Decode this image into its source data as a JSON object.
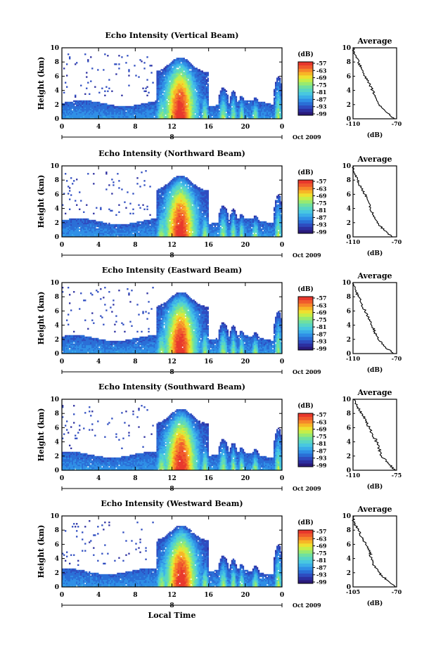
{
  "figure": {
    "xlabel": "Local Time"
  },
  "colorbar": {
    "unit": "(dB)",
    "ticks": [
      "-57",
      "-63",
      "-69",
      "-75",
      "-81",
      "-87",
      "-93",
      "-99"
    ],
    "colors": [
      "#2a1a7a",
      "#2c2fa0",
      "#2e4cc0",
      "#2a6ed6",
      "#2f8fe6",
      "#3aaee8",
      "#48c8e0",
      "#58d6c4",
      "#6fe0a0",
      "#98ea70",
      "#c6ee48",
      "#eee030",
      "#f7b626",
      "#f6862a",
      "#f05a2c",
      "#e8382c"
    ]
  },
  "chart_data": [
    {
      "type": "heatmap",
      "title": "Echo Intensity (Vertical Beam)",
      "ylabel": "Height (km)",
      "xlim": [
        0,
        24
      ],
      "ylim": [
        0,
        10
      ],
      "xticks": [
        "0",
        "4",
        "8",
        "12",
        "16",
        "20",
        "0"
      ],
      "yticks": [
        "0",
        "2",
        "4",
        "6",
        "8",
        "10"
      ],
      "date_marker": "8",
      "date_label": "Oct 2009",
      "avg": {
        "title": "Average",
        "xlabel": "(dB)",
        "xticks": [
          "-110",
          "-70"
        ],
        "xlim": [
          -110,
          -70
        ],
        "ylim": [
          0,
          10
        ],
        "profile": [
          [
            0,
            -72
          ],
          [
            1,
            -80
          ],
          [
            2,
            -86
          ],
          [
            3,
            -89
          ],
          [
            4,
            -92
          ],
          [
            5,
            -95
          ],
          [
            6,
            -99
          ],
          [
            7,
            -102
          ],
          [
            8,
            -105
          ],
          [
            9,
            -108
          ],
          [
            10,
            -110
          ]
        ]
      }
    },
    {
      "type": "heatmap",
      "title": "Echo Intensity (Northward Beam)",
      "ylabel": "Height (km)",
      "xlim": [
        0,
        24
      ],
      "ylim": [
        0,
        10
      ],
      "xticks": [
        "0",
        "4",
        "8",
        "12",
        "16",
        "20",
        "0"
      ],
      "yticks": [
        "0",
        "2",
        "4",
        "6",
        "8",
        "10"
      ],
      "date_marker": "8",
      "date_label": "Oct 2009",
      "avg": {
        "title": "Average",
        "xlabel": "(dB)",
        "xticks": [
          "-110",
          "-70"
        ],
        "xlim": [
          -110,
          -70
        ],
        "ylim": [
          0,
          10
        ],
        "profile": [
          [
            0,
            -74
          ],
          [
            1,
            -82
          ],
          [
            2,
            -88
          ],
          [
            3,
            -91
          ],
          [
            4,
            -94
          ],
          [
            5,
            -96
          ],
          [
            6,
            -99
          ],
          [
            7,
            -103
          ],
          [
            8,
            -106
          ],
          [
            9,
            -109
          ],
          [
            10,
            -110
          ]
        ]
      }
    },
    {
      "type": "heatmap",
      "title": "Echo Intensity (Eastward Beam)",
      "ylabel": "Height (km)",
      "xlim": [
        0,
        24
      ],
      "ylim": [
        0,
        10
      ],
      "xticks": [
        "0",
        "4",
        "8",
        "12",
        "16",
        "20",
        "0"
      ],
      "yticks": [
        "0",
        "2",
        "4",
        "6",
        "8",
        "10"
      ],
      "date_marker": "8",
      "date_label": "Oct 2009",
      "avg": {
        "title": "Average",
        "xlabel": "(dB)",
        "xticks": [
          "-110",
          "-70"
        ],
        "xlim": [
          -110,
          -70
        ],
        "ylim": [
          0,
          10
        ],
        "profile": [
          [
            0,
            -73
          ],
          [
            1,
            -81
          ],
          [
            2,
            -87
          ],
          [
            3,
            -90
          ],
          [
            4,
            -93
          ],
          [
            5,
            -96
          ],
          [
            6,
            -99
          ],
          [
            7,
            -102
          ],
          [
            8,
            -105
          ],
          [
            9,
            -108
          ],
          [
            10,
            -110
          ]
        ]
      }
    },
    {
      "type": "heatmap",
      "title": "Echo Intensity (Southward Beam)",
      "ylabel": "Height (km)",
      "xlim": [
        0,
        24
      ],
      "ylim": [
        0,
        10
      ],
      "xticks": [
        "0",
        "4",
        "8",
        "12",
        "16",
        "20",
        "0"
      ],
      "yticks": [
        "0",
        "2",
        "4",
        "6",
        "8",
        "10"
      ],
      "date_marker": "8",
      "date_label": "Oct 2009",
      "avg": {
        "title": "Average",
        "xlabel": "(dB)",
        "xticks": [
          "-110",
          "-75"
        ],
        "xlim": [
          -110,
          -75
        ],
        "ylim": [
          0,
          10
        ],
        "profile": [
          [
            0,
            -76
          ],
          [
            1,
            -82
          ],
          [
            2,
            -87
          ],
          [
            3,
            -89
          ],
          [
            4,
            -91
          ],
          [
            5,
            -94
          ],
          [
            6,
            -97
          ],
          [
            7,
            -100
          ],
          [
            8,
            -103
          ],
          [
            9,
            -107
          ],
          [
            10,
            -110
          ]
        ]
      }
    },
    {
      "type": "heatmap",
      "title": "Echo Intensity (Westward Beam)",
      "ylabel": "Height (km)",
      "xlim": [
        0,
        24
      ],
      "ylim": [
        0,
        10
      ],
      "xticks": [
        "0",
        "4",
        "8",
        "12",
        "16",
        "20",
        "0"
      ],
      "yticks": [
        "0",
        "2",
        "4",
        "6",
        "8",
        "10"
      ],
      "date_marker": "8",
      "date_label": "Oct 2009",
      "avg": {
        "title": "Average",
        "xlabel": "(dB)",
        "xticks": [
          "-105",
          "-70"
        ],
        "xlim": [
          -105,
          -70
        ],
        "ylim": [
          0,
          10
        ],
        "profile": [
          [
            0,
            -71
          ],
          [
            1,
            -78
          ],
          [
            2,
            -84
          ],
          [
            3,
            -88
          ],
          [
            4,
            -90
          ],
          [
            5,
            -92
          ],
          [
            6,
            -95
          ],
          [
            7,
            -98
          ],
          [
            8,
            -101
          ],
          [
            9,
            -104
          ],
          [
            10,
            -105
          ]
        ]
      }
    }
  ]
}
